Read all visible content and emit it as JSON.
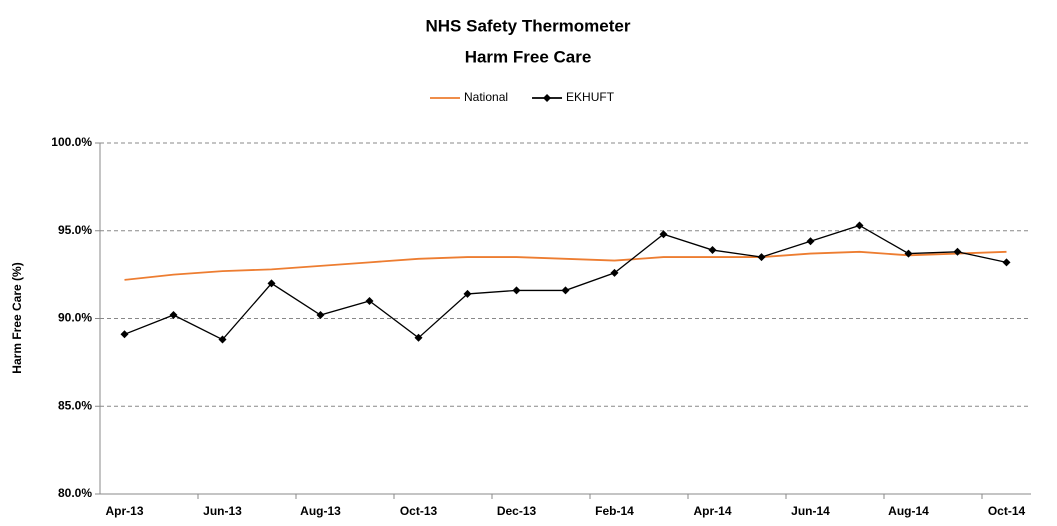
{
  "chart_data": {
    "type": "line",
    "title": "NHS Safety Thermometer",
    "subtitle": "Harm Free Care",
    "y_label": "Harm Free Care (%)",
    "categories": [
      "Apr-13",
      null,
      "Jun-13",
      null,
      "Aug-13",
      null,
      "Oct-13",
      null,
      "Dec-13",
      null,
      "Feb-14",
      null,
      "Apr-14",
      null,
      "Jun-14",
      null,
      "Aug-14",
      null,
      "Oct-14"
    ],
    "series": [
      {
        "name": "National",
        "color": "#ed7d31",
        "marker": false,
        "values": [
          92.2,
          92.5,
          92.7,
          92.8,
          93.0,
          93.2,
          93.4,
          93.5,
          93.5,
          93.4,
          93.3,
          93.5,
          93.5,
          93.5,
          93.7,
          93.8,
          93.6,
          93.7,
          93.8
        ]
      },
      {
        "name": "EKHUFT",
        "color": "#000000",
        "marker": true,
        "values": [
          89.1,
          90.2,
          88.8,
          92.0,
          90.2,
          91.0,
          88.9,
          91.4,
          91.6,
          91.6,
          92.6,
          94.8,
          93.9,
          93.5,
          94.4,
          95.3,
          93.7,
          93.8,
          93.2
        ]
      }
    ],
    "ylim": [
      80,
      100
    ],
    "yticks": [
      {
        "value": 80,
        "label": "80.0%"
      },
      {
        "value": 85,
        "label": "85.0%"
      },
      {
        "value": 90,
        "label": "90.0%"
      },
      {
        "value": 95,
        "label": "95.0%"
      },
      {
        "value": 100,
        "label": "100.0%"
      }
    ],
    "grid": true,
    "legend": "top"
  }
}
